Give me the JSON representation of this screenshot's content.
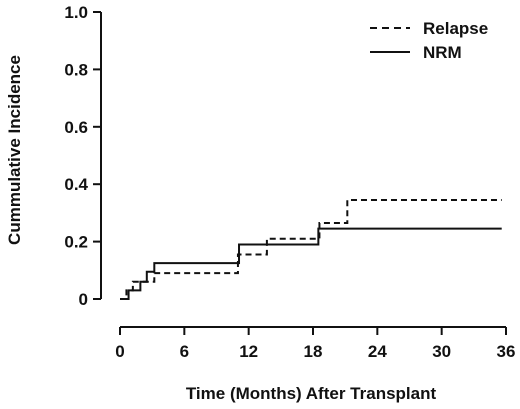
{
  "chart_data": {
    "type": "line",
    "title": "",
    "xlabel": "Time (Months) After Transplant",
    "ylabel": "Cummulative Incidence",
    "xlim": [
      -1,
      36
    ],
    "ylim": [
      0,
      1.0
    ],
    "x_ticks": [
      0,
      6,
      12,
      18,
      24,
      30,
      36
    ],
    "x_tick_labels": [
      "0",
      "6",
      "12",
      "18",
      "24",
      "30",
      "36"
    ],
    "y_ticks": [
      0,
      0.2,
      0.4,
      0.6,
      0.8,
      1.0
    ],
    "y_tick_labels": [
      "0",
      "0.2",
      "0.4",
      "0.6",
      "0.8",
      "1.0"
    ],
    "grid": false,
    "legend_position": "top-right",
    "step": true,
    "series": [
      {
        "name": "Relapse",
        "line_style": "dashed",
        "color": "#111111",
        "x": [
          0,
          0.6,
          1.2,
          2.0,
          3.2,
          9.7,
          11.0,
          13.7,
          18.6,
          21.2,
          35.6
        ],
        "y": [
          0,
          0.03,
          0.06,
          0.06,
          0.09,
          0.09,
          0.155,
          0.21,
          0.265,
          0.345,
          0.345
        ]
      },
      {
        "name": "NRM",
        "line_style": "solid",
        "color": "#111111",
        "x": [
          0,
          0.8,
          1.9,
          2.5,
          3.2,
          10.7,
          11.1,
          18.5,
          35.6
        ],
        "y": [
          0,
          0.03,
          0.06,
          0.095,
          0.125,
          0.125,
          0.19,
          0.245,
          0.245
        ]
      }
    ]
  }
}
